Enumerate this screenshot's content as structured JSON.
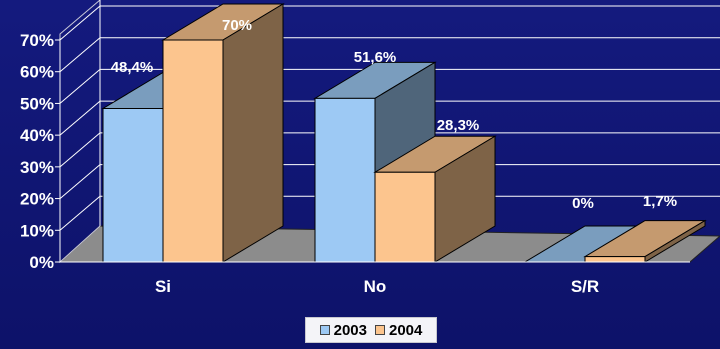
{
  "chart_data": {
    "type": "bar",
    "categories": [
      "Si",
      "No",
      "S/R"
    ],
    "series": [
      {
        "name": "2003",
        "values": [
          48.4,
          51.6,
          0
        ],
        "labels": [
          "48,4%",
          "51,6%",
          "0%"
        ],
        "color": "#9dc9f4"
      },
      {
        "name": "2004",
        "values": [
          70,
          28.3,
          1.7
        ],
        "labels": [
          "70%",
          "28,3%",
          "1,7%"
        ],
        "color": "#fcc58e"
      }
    ],
    "y_ticks": [
      "0%",
      "10%",
      "20%",
      "30%",
      "40%",
      "50%",
      "60%",
      "70%"
    ],
    "ylim": [
      0,
      70
    ],
    "grid": true,
    "legend_position": "bottom",
    "style": "3d-clustered-column",
    "background": "#111777"
  }
}
